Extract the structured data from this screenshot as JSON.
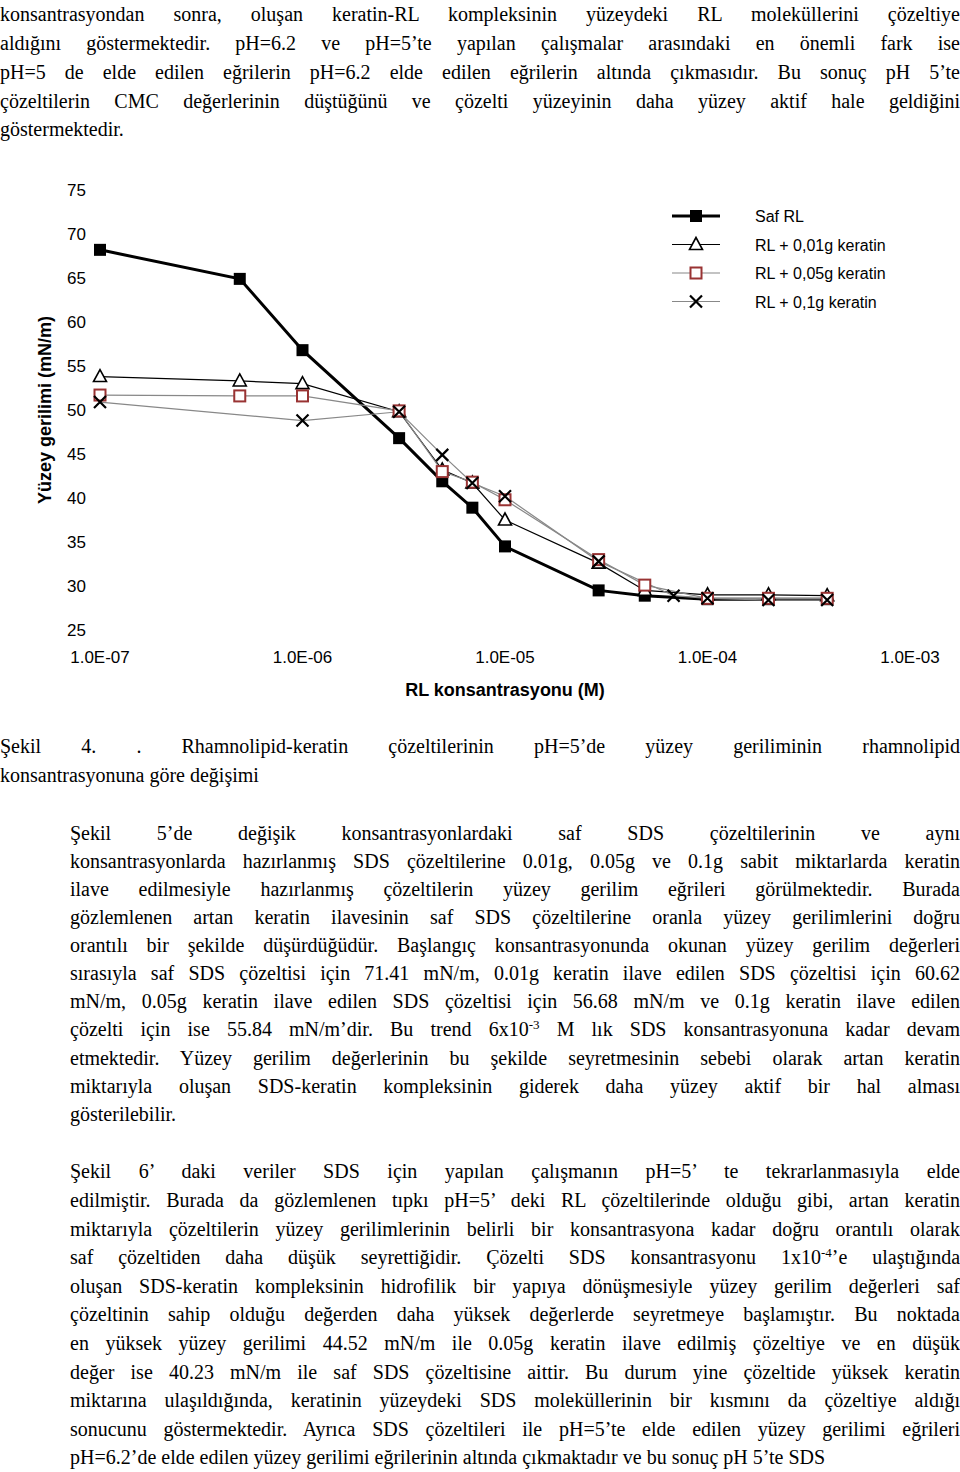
{
  "before": [
    {
      "indent": false,
      "lines": [
        "konsantrasyondan sonra, oluşan keratin-RL kompleksinin yüzeydeki RL moleküllerini çözeltiye",
        "aldığını göstermektedir.  pH=6.2 ve pH=5’te yapılan çalışmalar arasındaki en önemli fark ise",
        "pH=5 de elde edilen eğrilerin pH=6.2 elde edilen eğrilerin altında çıkmasıdır.  Bu sonuç pH 5’te",
        "çözeltilerin CMC değerlerinin düştüğünü ve çözelti yüzeyinin daha yüzey aktif hale geldiğini",
        "göstermektedir."
      ]
    }
  ],
  "chart_data": {
    "type": "line",
    "x_label": "RL konsantrasyonu (M)",
    "y_label": "Yüzey gerilimi (mN/m)",
    "log": "x",
    "grid": false,
    "legend": "upper right",
    "xlim": [
      1e-07,
      0.001
    ],
    "xticks": [
      {
        "value": 1e-07,
        "label": "1.0E-07"
      },
      {
        "value": 1e-06,
        "label": "1.0E-06"
      },
      {
        "value": 1e-05,
        "label": "1.0E-05"
      },
      {
        "value": 0.0001,
        "label": "1.0E-04"
      },
      {
        "value": 0.001,
        "label": "1.0E-03"
      }
    ],
    "ylim": [
      25,
      75
    ],
    "yticks": [
      25,
      30,
      35,
      40,
      45,
      50,
      55,
      60,
      65,
      70,
      75
    ],
    "series": [
      {
        "name": "Saf RL",
        "color": "#000000",
        "marker": "square",
        "line_style": "thick",
        "x": [
          1e-07,
          4.9e-07,
          1e-06,
          3e-06,
          4.9e-06,
          6.9e-06,
          1e-05,
          2.9e-05,
          4.9e-05,
          0.0001,
          0.0002,
          0.00039
        ],
        "values": [
          68.2,
          64.9,
          56.8,
          46.8,
          41.9,
          38.9,
          34.5,
          29.5,
          28.9,
          28.5,
          28.5,
          28.5
        ]
      },
      {
        "name": "RL + 0,01g keratin",
        "color": "#000000",
        "marker": "triangle",
        "line_style": "thin",
        "x": [
          1e-07,
          4.9e-07,
          1e-06,
          3e-06,
          4.9e-06,
          6.9e-06,
          1e-05,
          2.9e-05,
          4.9e-05,
          0.0001,
          0.0002,
          0.00039
        ],
        "values": [
          53.8,
          53.3,
          53.0,
          49.8,
          43.2,
          41.7,
          37.5,
          32.6,
          29.5,
          29.0,
          29.0,
          28.9
        ]
      },
      {
        "name": "RL + 0,05g keratin",
        "color": "#993333",
        "marker": "square-open",
        "line_style": "thin",
        "x": [
          1e-07,
          4.9e-07,
          1e-06,
          3e-06,
          4.9e-06,
          6.9e-06,
          1e-05,
          2.9e-05,
          4.9e-05,
          0.0001,
          0.0002,
          0.00039
        ],
        "values": [
          51.7,
          51.6,
          51.6,
          49.9,
          43.0,
          41.8,
          39.8,
          33.0,
          30.1,
          28.6,
          28.6,
          28.6
        ]
      },
      {
        "name": "RL + 0,1g keratin",
        "color": "#000000",
        "marker": "x",
        "line_style": "thin",
        "x": [
          1e-07,
          1e-06,
          3e-06,
          4.9e-06,
          6.9e-06,
          1e-05,
          2.9e-05,
          6.8e-05,
          0.0001,
          0.0002,
          0.00039
        ],
        "values": [
          50.9,
          48.8,
          49.8,
          44.9,
          41.7,
          40.2,
          32.8,
          28.9,
          28.6,
          28.4,
          28.4
        ]
      }
    ]
  },
  "caption": {
    "indent": false,
    "lines": [
      "Şekil 4. . Rhamnolipid-keratin çözeltilerinin pH=5’de yüzey geriliminin rhamnolipid",
      "konsantrasyonuna göre değişimi"
    ]
  },
  "after": [
    {
      "indent": true,
      "lines": [
        "Şekil 5’de değişik konsantrasyonlardaki saf SDS çözeltilerinin ve aynı",
        "konsantrasyonlarda hazırlanmış SDS çözeltilerine 0.01g, 0.05g ve 0.1g sabit miktarlarda keratin",
        "ilave edilmesiyle hazırlanmış çözeltilerin yüzey gerilim eğrileri görülmektedir.  Burada",
        "gözlemlenen artan keratin ilavesinin saf SDS çözeltilerine oranla yüzey gerilimlerini doğru",
        "orantılı bir şekilde düşürdüğüdür.  Başlangıç konsantrasyonunda okunan yüzey gerilim değerleri",
        "sırasıyla saf SDS çözeltisi için 71.41 mN/m, 0.01g keratin ilave edilen SDS çözeltisi için 60.62",
        "mN/m, 0.05g keratin ilave edilen SDS çözeltisi için 56.68 mN/m ve 0.1g keratin ilave edilen",
        [
          "çözelti için ise 55.84 mN/m’dir.  Bu trend 6x10",
          "-3",
          " M lık SDS konsantrasyonuna kadar devam"
        ],
        "etmektedir.  Yüzey gerilim değerlerinin bu şekilde seyretmesinin sebebi olarak artan keratin",
        "miktarıyla oluşan SDS-keratin kompleksinin giderek daha yüzey aktif bir hal alması",
        "gösterilebilir."
      ]
    },
    {
      "indent": true,
      "lines": [
        "Şekil 6’ daki veriler SDS için yapılan çalışmanın pH=5’ te tekrarlanmasıyla elde",
        "edilmiştir.  Burada da gözlemlenen tıpkı pH=5’ deki RL çözeltilerinde olduğu gibi, artan keratin",
        "miktarıyla çözeltilerin yüzey gerilimlerinin belirli bir konsantrasyona kadar doğru orantılı olarak",
        [
          "saf çözeltiden daha düşük seyrettiğidir.  Çözelti SDS konsantrasyonu 1x10",
          "-4",
          "’e ulaştığında"
        ],
        "oluşan SDS-keratin kompleksinin hidrofilik bir yapıya dönüşmesiyle yüzey gerilim değerleri saf",
        "çözeltinin sahip olduğu değerden daha yüksek değerlerde seyretmeye başlamıştır.  Bu noktada",
        "en yüksek yüzey gerilimi 44.52 mN/m ile 0.05g keratin ilave edilmiş çözeltiye ve en düşük",
        "değer ise 40.23 mN/m ile saf SDS çözeltisine aittir.  Bu durum yine çözeltide yüksek keratin",
        "miktarına ulaşıldığında, keratinin yüzeydeki SDS moleküllerinin bir kısmını da çözeltiye aldığı",
        "sonucunu göstermektedir.  Ayrıca SDS çözeltileri ile pH=5’te elde edilen yüzey gerilimi eğrileri",
        "pH=6.2’de elde edilen yüzey gerilimi eğrilerinin altında çıkmaktadır ve bu sonuç pH 5’te SDS"
      ]
    }
  ]
}
